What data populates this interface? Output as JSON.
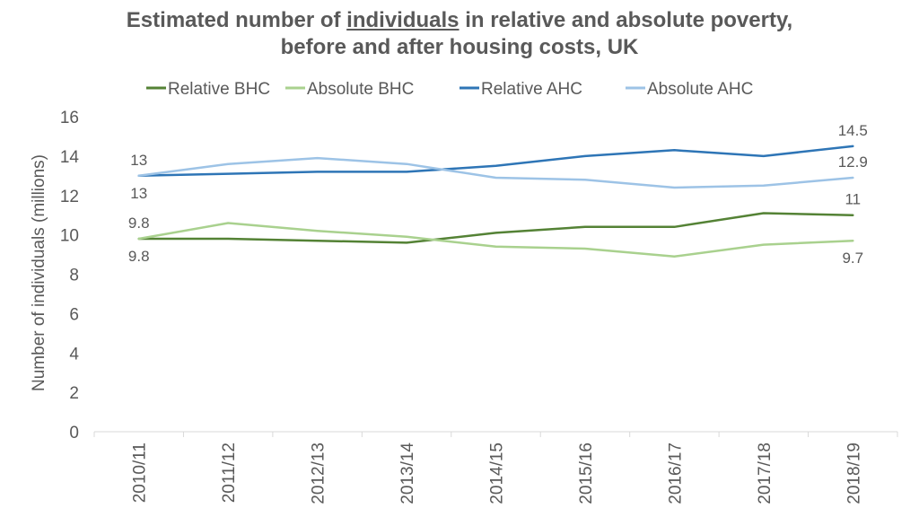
{
  "chart_data": {
    "type": "line",
    "title_line1": {
      "before": "Estimated number of ",
      "underlined": "individuals",
      "after": " in relative and absolute poverty,"
    },
    "title_line2": "before and after housing costs, UK",
    "xlabel": "",
    "ylabel": "Number of individuals (millions)",
    "ylim": [
      0,
      16
    ],
    "yticks": [
      "0",
      "2",
      "4",
      "6",
      "8",
      "10",
      "12",
      "14",
      "16"
    ],
    "categories": [
      "2010/11",
      "2011/12",
      "2012/13",
      "2013/14",
      "2014/15",
      "2015/16",
      "2016/17",
      "2017/18",
      "2018/19"
    ],
    "legend_position": "top",
    "grid": false,
    "series": [
      {
        "name": "Relative BHC",
        "color": "#548235",
        "values": [
          9.8,
          9.8,
          9.7,
          9.6,
          10.1,
          10.4,
          10.4,
          11.1,
          11.0
        ]
      },
      {
        "name": "Absolute BHC",
        "color": "#a9d18e",
        "values": [
          9.8,
          10.6,
          10.2,
          9.9,
          9.4,
          9.3,
          8.9,
          9.5,
          9.7
        ]
      },
      {
        "name": "Relative AHC",
        "color": "#2e75b6",
        "values": [
          13.0,
          13.1,
          13.2,
          13.2,
          13.5,
          14.0,
          14.3,
          14.0,
          14.5
        ]
      },
      {
        "name": "Absolute AHC",
        "color": "#9dc3e6",
        "values": [
          13.0,
          13.6,
          13.9,
          13.6,
          12.9,
          12.8,
          12.4,
          12.5,
          12.9
        ]
      }
    ],
    "data_labels": [
      {
        "text": "13",
        "series": "Absolute AHC",
        "index": 0,
        "pos": "above"
      },
      {
        "text": "13",
        "series": "Relative AHC",
        "index": 0,
        "pos": "below"
      },
      {
        "text": "9.8",
        "series": "Absolute BHC",
        "index": 0,
        "pos": "above"
      },
      {
        "text": "9.8",
        "series": "Relative BHC",
        "index": 0,
        "pos": "below"
      },
      {
        "text": "14.5",
        "series": "Relative AHC",
        "index": 8,
        "pos": "above"
      },
      {
        "text": "12.9",
        "series": "Absolute AHC",
        "index": 8,
        "pos": "above"
      },
      {
        "text": "11",
        "series": "Relative BHC",
        "index": 8,
        "pos": "above"
      },
      {
        "text": "9.7",
        "series": "Absolute BHC",
        "index": 8,
        "pos": "below"
      }
    ]
  }
}
